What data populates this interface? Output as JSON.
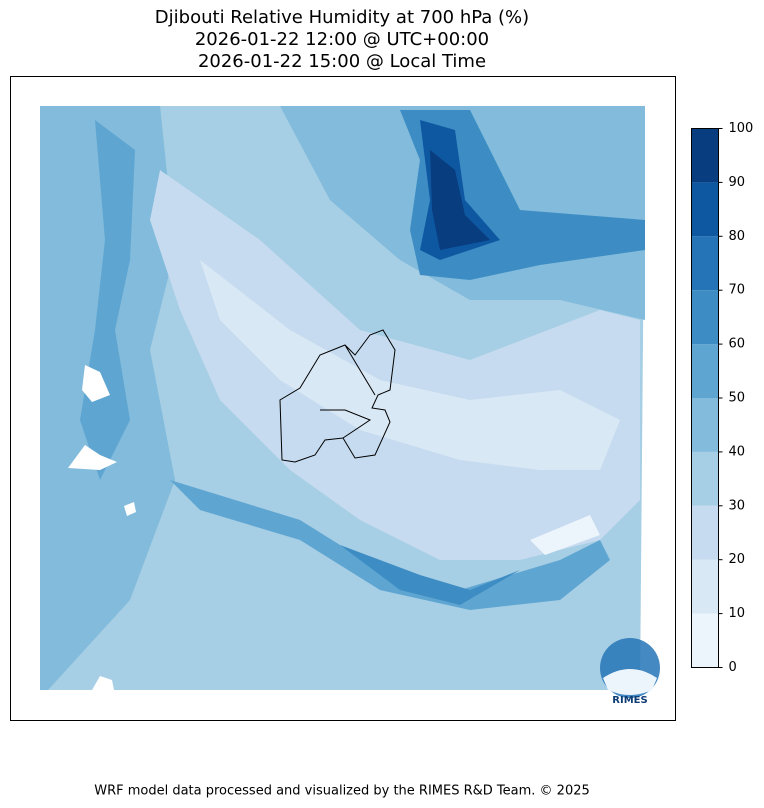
{
  "title_lines": [
    "Djibouti Relative Humidity at 700 hPa (%)",
    "2026-01-22 12:00 @ UTC+00:00",
    "2026-01-22 15:00 @ Local Time"
  ],
  "colorbar": {
    "range": [
      0,
      100
    ],
    "ticks": [
      0,
      10,
      20,
      30,
      40,
      50,
      60,
      70,
      80,
      90,
      100
    ],
    "colors": [
      "#ecf4fc",
      "#d9e8f5",
      "#c6dbef",
      "#a6cee4",
      "#82bbdb",
      "#5ea5d1",
      "#3d8dc4",
      "#2474b7",
      "#0e58a2",
      "#083d7f"
    ]
  },
  "logo": "RIMES",
  "footer": "WRF model data processed and visualized by the RIMES R&D Team. © 2025"
}
